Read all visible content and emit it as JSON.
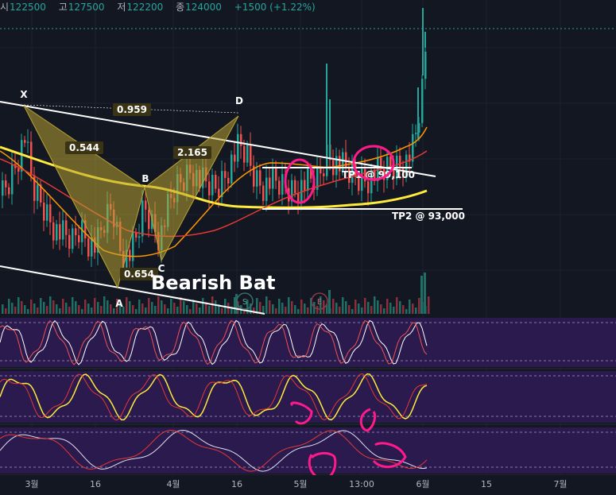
{
  "header": {
    "open_label": "시",
    "open": "122500",
    "high_label": "고",
    "high": "127500",
    "low_label": "저",
    "low": "122200",
    "close_label": "종",
    "close": "124000",
    "change": "+1500 (+1.22%)"
  },
  "pattern_title": "Bearish Bat",
  "points": [
    "X",
    "A",
    "B",
    "C",
    "D"
  ],
  "ratios": [
    "0.544",
    "0.959",
    "0.654",
    "2.165"
  ],
  "targets": [
    "TP1 @ 99,100",
    "TP2 @ 93,000"
  ],
  "events": [
    "S",
    "E"
  ],
  "x_axis": [
    "3월",
    "16",
    "4월",
    "16",
    "5월",
    "13:00",
    "6월",
    "15",
    "7월"
  ],
  "colors": {
    "up": "#26a69a",
    "down": "#ef5350",
    "ma_yellow": "#ffeb3b",
    "ma_orange": "#ff9800",
    "ma_red": "#e53935",
    "pattern": "#b8a232",
    "panel_bg": "#2a1a4e",
    "marker": "#ff1a8c"
  },
  "chart_data": {
    "type": "line",
    "note_free": true,
    "price_series": [
      {
        "t": 0,
        "c": 99000
      },
      {
        "t": 10,
        "c": 101000
      },
      {
        "t": 20,
        "c": 104000
      },
      {
        "t": 30,
        "c": 107500
      },
      {
        "t": 40,
        "c": 100000
      },
      {
        "t": 50,
        "c": 98000
      },
      {
        "t": 60,
        "c": 96000
      },
      {
        "t": 70,
        "c": 94000
      },
      {
        "t": 80,
        "c": 93000
      },
      {
        "t": 90,
        "c": 92500
      },
      {
        "t": 100,
        "c": 94500
      },
      {
        "t": 110,
        "c": 92500
      },
      {
        "t": 120,
        "c": 91500
      },
      {
        "t": 130,
        "c": 95000
      },
      {
        "t": 140,
        "c": 97500
      },
      {
        "t": 150,
        "c": 91500
      },
      {
        "t": 160,
        "c": 90000
      },
      {
        "t": 170,
        "c": 92500
      },
      {
        "t": 180,
        "c": 97500
      },
      {
        "t": 190,
        "c": 95000
      },
      {
        "t": 200,
        "c": 93000
      },
      {
        "t": 210,
        "c": 97000
      },
      {
        "t": 220,
        "c": 100000
      },
      {
        "t": 230,
        "c": 101500
      },
      {
        "t": 240,
        "c": 103000
      },
      {
        "t": 250,
        "c": 101000
      },
      {
        "t": 260,
        "c": 100500
      },
      {
        "t": 270,
        "c": 100000
      },
      {
        "t": 280,
        "c": 101500
      },
      {
        "t": 290,
        "c": 104000
      },
      {
        "t": 300,
        "c": 106000
      },
      {
        "t": 310,
        "c": 104500
      },
      {
        "t": 320,
        "c": 101500
      },
      {
        "t": 330,
        "c": 100500
      },
      {
        "t": 340,
        "c": 101000
      },
      {
        "t": 350,
        "c": 100500
      },
      {
        "t": 360,
        "c": 100000
      },
      {
        "t": 370,
        "c": 99800
      },
      {
        "t": 380,
        "c": 100500
      },
      {
        "t": 390,
        "c": 101000
      },
      {
        "t": 400,
        "c": 101500
      },
      {
        "t": 410,
        "c": 105000
      },
      {
        "t": 420,
        "c": 104000
      },
      {
        "t": 430,
        "c": 103000
      },
      {
        "t": 440,
        "c": 102000
      },
      {
        "t": 450,
        "c": 101500
      },
      {
        "t": 460,
        "c": 101500
      },
      {
        "t": 470,
        "c": 102000
      },
      {
        "t": 480,
        "c": 102500
      },
      {
        "t": 490,
        "c": 103000
      },
      {
        "t": 500,
        "c": 103500
      },
      {
        "t": 510,
        "c": 104000
      },
      {
        "t": 520,
        "c": 106000
      },
      {
        "t": 530,
        "c": 114000
      },
      {
        "t": 537,
        "c": 124000
      }
    ]
  }
}
